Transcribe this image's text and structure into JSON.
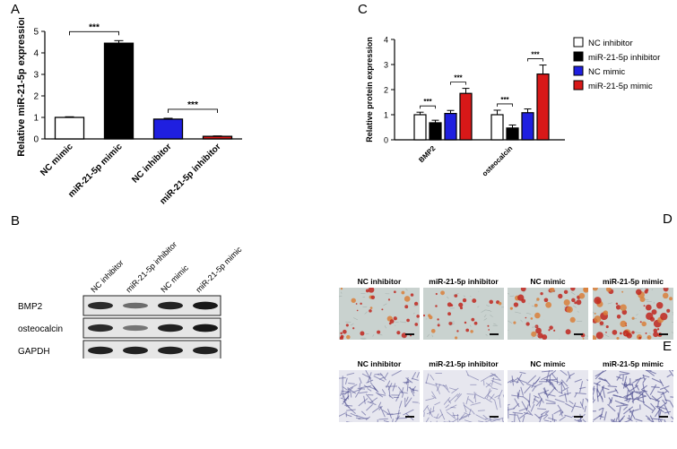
{
  "panels": {
    "a": "A",
    "b": "B",
    "c": "C",
    "d": "D",
    "e": "E"
  },
  "chart_data": [
    {
      "type": "bar",
      "panel": "A",
      "categories": [
        "NC mimic",
        "miR-21-5p mimic",
        "NC inhibitor",
        "miR-21-5p inhibitor"
      ],
      "values": [
        1.0,
        4.45,
        0.92,
        0.12
      ],
      "errors": [
        0.03,
        0.12,
        0.04,
        0.02
      ],
      "bar_colors": [
        "#ffffff",
        "#000000",
        "#1f1fe0",
        "#d81818"
      ],
      "ylabel": "Relative miR-21-5p expression",
      "ylim": [
        0,
        5
      ],
      "yticks": [
        "0",
        "1",
        "2",
        "3",
        "4",
        "5"
      ],
      "significance": [
        {
          "between": [
            0,
            1
          ],
          "label": "***"
        },
        {
          "between": [
            2,
            3
          ],
          "label": "***"
        }
      ],
      "grid": false
    },
    {
      "type": "bar",
      "panel": "C",
      "categories": [
        "BMP2",
        "osteocalcin"
      ],
      "series": [
        {
          "name": "NC inhibitor",
          "color": "#ffffff",
          "values": [
            1.0,
            1.0
          ],
          "errors": [
            0.1,
            0.18
          ]
        },
        {
          "name": "miR-21-5p inhibitor",
          "color": "#000000",
          "values": [
            0.68,
            0.47
          ],
          "errors": [
            0.1,
            0.12
          ]
        },
        {
          "name": "NC mimic",
          "color": "#1f1fe0",
          "values": [
            1.05,
            1.08
          ],
          "errors": [
            0.12,
            0.15
          ]
        },
        {
          "name": "miR-21-5p mimic",
          "color": "#d81818",
          "values": [
            1.85,
            2.62
          ],
          "errors": [
            0.2,
            0.36
          ]
        }
      ],
      "ylabel": "Relative protein expression",
      "ylim": [
        0,
        4
      ],
      "yticks": [
        "0",
        "1",
        "2",
        "3",
        "4"
      ],
      "significance": [
        {
          "group": 0,
          "between": [
            0,
            1
          ],
          "label": "***"
        },
        {
          "group": 0,
          "between": [
            2,
            3
          ],
          "label": "***"
        },
        {
          "group": 1,
          "between": [
            0,
            1
          ],
          "label": "***"
        },
        {
          "group": 1,
          "between": [
            2,
            3
          ],
          "label": "***"
        }
      ],
      "legend_placement": "right",
      "grid": false
    }
  ],
  "western_blot": {
    "lanes": [
      "NC inhibitor",
      "miR-21-5p inhibitor",
      "NC mimic",
      "miR-21-5p mimic"
    ],
    "rows": [
      {
        "label": "BMP2",
        "intensity": [
          0.85,
          0.5,
          0.9,
          0.95
        ]
      },
      {
        "label": "osteocalcin",
        "intensity": [
          0.85,
          0.45,
          0.9,
          0.95
        ]
      },
      {
        "label": "GAPDH",
        "intensity": [
          0.9,
          0.9,
          0.9,
          0.9
        ]
      }
    ]
  },
  "micrographs_d": {
    "labels": [
      "NC inhibitor",
      "miR-21-5p inhibitor",
      "NC mimic",
      "miR-21-5p mimic"
    ],
    "stain_level": [
      0.35,
      0.2,
      0.45,
      0.75
    ]
  },
  "micrographs_e": {
    "labels": [
      "NC inhibitor",
      "miR-21-5p inhibitor",
      "NC mimic",
      "miR-21-5p mimic"
    ],
    "stain_level": [
      0.5,
      0.3,
      0.55,
      0.7
    ]
  }
}
